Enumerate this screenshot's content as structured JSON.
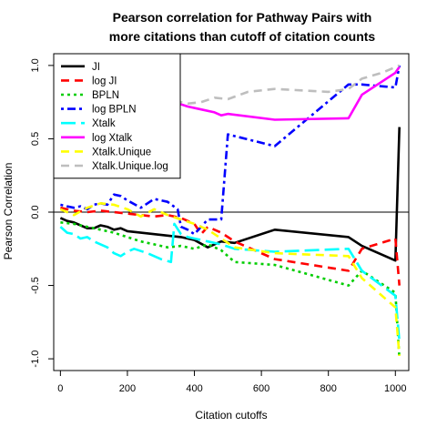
{
  "chart_data": {
    "type": "line",
    "title_line1": "Pearson correlation for Pathway Pairs with",
    "title_line2": "more citations than cutoff of citation counts",
    "xlabel": "Citation cutoffs",
    "ylabel": "Pearson Correlation",
    "xlim": [
      -20,
      1040
    ],
    "ylim": [
      -1.08,
      1.08
    ],
    "xticks": [
      0,
      200,
      400,
      600,
      800,
      1000
    ],
    "yticks": [
      -1.0,
      -0.5,
      0.0,
      0.5,
      1.0
    ],
    "ytick_labels": [
      "-1.0",
      "-0.5",
      "0.0",
      "0.5",
      "1.0"
    ],
    "reference_line_y": 0,
    "legend_position": "top-left",
    "series": [
      {
        "name": "JI",
        "color": "#000000",
        "dash": "solid",
        "x": [
          0,
          20,
          40,
          60,
          80,
          100,
          120,
          140,
          160,
          180,
          200,
          240,
          280,
          320,
          360,
          400,
          440,
          480,
          520,
          640,
          860,
          900,
          1000,
          1012
        ],
        "y": [
          -0.04,
          -0.06,
          -0.07,
          -0.09,
          -0.11,
          -0.11,
          -0.09,
          -0.1,
          -0.12,
          -0.11,
          -0.13,
          -0.14,
          -0.15,
          -0.16,
          -0.17,
          -0.19,
          -0.24,
          -0.2,
          -0.21,
          -0.12,
          -0.17,
          -0.23,
          -0.33,
          0.58
        ]
      },
      {
        "name": "log JI",
        "color": "#ff0000",
        "dash": "dashed",
        "x": [
          0,
          40,
          80,
          120,
          160,
          200,
          240,
          280,
          320,
          360,
          400,
          420,
          440,
          480,
          520,
          640,
          860,
          900,
          1000,
          1012
        ],
        "y": [
          0.03,
          0.01,
          0.0,
          0.01,
          0.0,
          -0.01,
          -0.02,
          -0.03,
          -0.02,
          -0.04,
          -0.08,
          -0.15,
          -0.1,
          -0.14,
          -0.2,
          -0.32,
          -0.4,
          -0.25,
          -0.18,
          -0.5
        ]
      },
      {
        "name": "BPLN",
        "color": "#00cd00",
        "dash": "dotted",
        "x": [
          0,
          40,
          80,
          120,
          160,
          200,
          240,
          280,
          320,
          360,
          400,
          440,
          480,
          520,
          640,
          860,
          900,
          1000,
          1012
        ],
        "y": [
          -0.07,
          -0.08,
          -0.1,
          -0.12,
          -0.14,
          -0.17,
          -0.2,
          -0.22,
          -0.24,
          -0.23,
          -0.25,
          -0.22,
          -0.26,
          -0.34,
          -0.36,
          -0.5,
          -0.4,
          -0.55,
          -1.0
        ]
      },
      {
        "name": "log BPLN",
        "color": "#0000ff",
        "dash": "dashdot",
        "x": [
          0,
          20,
          40,
          60,
          80,
          100,
          120,
          140,
          160,
          180,
          200,
          240,
          280,
          320,
          350,
          360,
          380,
          400,
          440,
          480,
          500,
          640,
          860,
          900,
          1000,
          1012
        ],
        "y": [
          0.05,
          0.04,
          0.03,
          0.04,
          0.02,
          0.05,
          0.06,
          0.05,
          0.12,
          0.11,
          0.08,
          0.03,
          0.09,
          0.07,
          0.02,
          -0.1,
          -0.12,
          -0.15,
          -0.05,
          -0.05,
          0.53,
          0.45,
          0.87,
          0.87,
          0.85,
          1.0
        ]
      },
      {
        "name": "Xtalk",
        "color": "#00ffff",
        "dash": "longdash",
        "x": [
          0,
          20,
          40,
          60,
          80,
          100,
          120,
          140,
          160,
          180,
          200,
          220,
          260,
          300,
          330,
          340,
          360,
          380,
          400,
          440,
          480,
          520,
          640,
          860,
          900,
          1000,
          1012
        ],
        "y": [
          -0.1,
          -0.14,
          -0.15,
          -0.18,
          -0.17,
          -0.2,
          -0.22,
          -0.24,
          -0.28,
          -0.3,
          -0.27,
          -0.25,
          -0.28,
          -0.32,
          -0.34,
          -0.08,
          -0.15,
          -0.17,
          -0.18,
          -0.2,
          -0.22,
          -0.25,
          -0.27,
          -0.25,
          -0.4,
          -0.57,
          -0.88
        ]
      },
      {
        "name": "log Xtalk",
        "color": "#ff00ff",
        "dash": "solid",
        "x": [
          340,
          380,
          420,
          460,
          480,
          500,
          640,
          860,
          900,
          1000,
          1012
        ],
        "y": [
          0.75,
          0.72,
          0.7,
          0.68,
          0.66,
          0.67,
          0.63,
          0.64,
          0.8,
          0.95,
          0.99
        ]
      },
      {
        "name": "Xtalk.Unique",
        "color": "#ffff00",
        "dash": "dashed",
        "x": [
          0,
          40,
          80,
          120,
          160,
          200,
          240,
          280,
          320,
          360,
          400,
          440,
          480,
          520,
          640,
          860,
          900,
          1000,
          1012
        ],
        "y": [
          0.02,
          -0.02,
          0.03,
          0.06,
          0.05,
          0.02,
          -0.03,
          0.02,
          -0.02,
          -0.05,
          -0.08,
          -0.12,
          -0.18,
          -0.24,
          -0.28,
          -0.3,
          -0.45,
          -0.65,
          -0.98
        ]
      },
      {
        "name": "Xtalk.Unique.log",
        "color": "#bebebe",
        "dash": "dashed",
        "x": [
          340,
          380,
          420,
          460,
          500,
          560,
          640,
          720,
          800,
          860,
          900,
          960,
          1012
        ],
        "y": [
          0.76,
          0.74,
          0.75,
          0.78,
          0.77,
          0.82,
          0.84,
          0.83,
          0.82,
          0.84,
          0.91,
          0.95,
          1.0
        ]
      }
    ]
  }
}
